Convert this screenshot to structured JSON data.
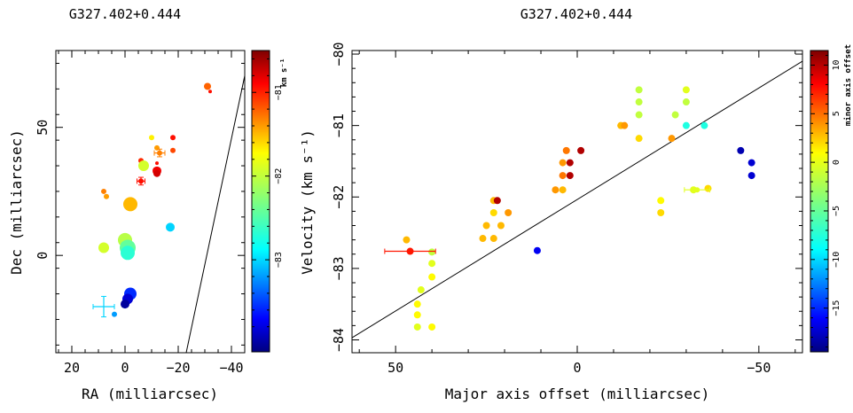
{
  "figure": {
    "left_title": "G327.402+0.444",
    "right_title": "G327.402+0.444"
  },
  "chart_data": [
    {
      "type": "scatter",
      "title": "G327.402+0.444",
      "xlabel": "RA (milliarcsec)",
      "ylabel": "Dec (milliarcsec)",
      "xlim": [
        26,
        -45
      ],
      "ylim": [
        -38,
        80
      ],
      "x_ticks": [
        20,
        0,
        -20,
        -40
      ],
      "y_ticks": [
        0,
        50
      ],
      "x_tick_labels": [
        "20",
        "0",
        "−20",
        "−40"
      ],
      "y_tick_labels": [
        "0",
        "50"
      ],
      "fit_line": [
        [
          -47,
          80
        ],
        [
          -23,
          -38
        ]
      ],
      "color_by": "velocity (km s^-1)",
      "colorbar": {
        "label": "km s⁻¹",
        "min": -84.1,
        "max": -80.5,
        "ticks": [
          -81,
          -82,
          -83
        ],
        "tick_labels": [
          "−81",
          "−82",
          "−83"
        ]
      },
      "points": [
        {
          "ra": -31,
          "dec": 66,
          "v": -81.3,
          "r": 4
        },
        {
          "ra": -32,
          "dec": 64,
          "v": -81.0,
          "r": 2
        },
        {
          "ra": -18,
          "dec": 46,
          "v": -81.0,
          "r": 3
        },
        {
          "ra": -10,
          "dec": 46,
          "v": -81.8,
          "r": 3
        },
        {
          "ra": -12,
          "dec": 42,
          "v": -81.5,
          "r": 3
        },
        {
          "ra": -18,
          "dec": 41,
          "v": -81.2,
          "r": 3
        },
        {
          "ra": -13,
          "dec": 40,
          "v": -81.4,
          "r": 3
        },
        {
          "ra": -6,
          "dec": 37,
          "v": -81.1,
          "r": 3
        },
        {
          "ra": -12,
          "dec": 36,
          "v": -81.0,
          "r": 2
        },
        {
          "ra": -7,
          "dec": 35,
          "v": -82.0,
          "r": 6
        },
        {
          "ra": -12,
          "dec": 33,
          "v": -80.9,
          "r": 5
        },
        {
          "ra": -12,
          "dec": 32,
          "v": -80.8,
          "r": 4
        },
        {
          "ra": -6,
          "dec": 29,
          "v": -81.0,
          "r": 3
        },
        {
          "ra": 8,
          "dec": 25,
          "v": -81.4,
          "r": 3
        },
        {
          "ra": 7,
          "dec": 23,
          "v": -81.5,
          "r": 3
        },
        {
          "ra": -2,
          "dec": 20,
          "v": -81.6,
          "r": 8
        },
        {
          "ra": -17,
          "dec": 11,
          "v": -82.9,
          "r": 5
        },
        {
          "ra": 0,
          "dec": 6,
          "v": -82.1,
          "r": 8
        },
        {
          "ra": 8,
          "dec": 3,
          "v": -82.0,
          "r": 6
        },
        {
          "ra": -1,
          "dec": 3,
          "v": -82.4,
          "r": 9
        },
        {
          "ra": -1,
          "dec": 1,
          "v": -82.6,
          "r": 8
        },
        {
          "ra": -2,
          "dec": -15,
          "v": -83.5,
          "r": 7
        },
        {
          "ra": -1,
          "dec": -17,
          "v": -83.8,
          "r": 6
        },
        {
          "ra": 0,
          "dec": -19,
          "v": -84.0,
          "r": 5
        },
        {
          "ra": 4,
          "dec": -23,
          "v": -83.1,
          "r": 3
        }
      ],
      "error_bars": [
        {
          "ra": -6,
          "dec": 29,
          "dx": 1.5,
          "dy": 1.5,
          "v": -81.0
        },
        {
          "ra": -13,
          "dec": 40,
          "dx": 2,
          "dy": 1.5,
          "v": -81.4
        },
        {
          "ra": 8,
          "dec": -20,
          "dx": 4,
          "dy": 4,
          "v": -82.9
        }
      ]
    },
    {
      "type": "scatter",
      "title": "G327.402+0.444",
      "xlabel": "Major axis offset (milliarcsec)",
      "ylabel": "Velocity (km s⁻¹)",
      "xlim": [
        62,
        -62
      ],
      "ylim": [
        -84.18,
        -79.95
      ],
      "x_ticks": [
        50,
        0,
        -50
      ],
      "y_ticks": [
        -80,
        -81,
        -82,
        -83,
        -84
      ],
      "x_tick_labels": [
        "50",
        "0",
        "−50"
      ],
      "y_tick_labels": [
        "−80",
        "−81",
        "−82",
        "−83",
        "−84"
      ],
      "fit_line": [
        [
          62,
          -83.97
        ],
        [
          -62,
          -80.1
        ]
      ],
      "color_by": "minor axis offset",
      "colorbar": {
        "label": "minor axis offset",
        "min": -19.5,
        "max": 11.5,
        "ticks": [
          10,
          5,
          0,
          -5,
          -10,
          -15
        ],
        "tick_labels": [
          "10",
          "5",
          "0",
          "−5",
          "−10",
          "−15"
        ]
      },
      "points": [
        {
          "x": 47,
          "y": -82.6,
          "m": 2
        },
        {
          "x": 44,
          "y": -83.5,
          "m": 0
        },
        {
          "x": 44,
          "y": -83.65,
          "m": 0
        },
        {
          "x": 44,
          "y": -83.82,
          "m": -1
        },
        {
          "x": 43,
          "y": -83.3,
          "m": -1
        },
        {
          "x": 40,
          "y": -82.77,
          "m": -2
        },
        {
          "x": 40,
          "y": -82.93,
          "m": -1
        },
        {
          "x": 40,
          "y": -83.12,
          "m": 0
        },
        {
          "x": 40,
          "y": -83.82,
          "m": 0
        },
        {
          "x": 26,
          "y": -82.58,
          "m": 2
        },
        {
          "x": 25,
          "y": -82.4,
          "m": 2
        },
        {
          "x": 23,
          "y": -82.05,
          "m": 2
        },
        {
          "x": 23,
          "y": -82.22,
          "m": 1
        },
        {
          "x": 23,
          "y": -82.58,
          "m": 2
        },
        {
          "x": 22,
          "y": -82.05,
          "m": 10
        },
        {
          "x": 21,
          "y": -82.4,
          "m": 2
        },
        {
          "x": 19,
          "y": -82.22,
          "m": 3
        },
        {
          "x": 11,
          "y": -82.75,
          "m": -16
        },
        {
          "x": 6,
          "y": -81.9,
          "m": 3
        },
        {
          "x": 4,
          "y": -81.9,
          "m": 2
        },
        {
          "x": 4,
          "y": -81.7,
          "m": 4
        },
        {
          "x": 4,
          "y": -81.52,
          "m": 3
        },
        {
          "x": 3,
          "y": -81.35,
          "m": 4
        },
        {
          "x": 2,
          "y": -81.7,
          "m": 10
        },
        {
          "x": 2,
          "y": -81.52,
          "m": 10
        },
        {
          "x": -1,
          "y": -81.35,
          "m": 10
        },
        {
          "x": -12,
          "y": -81.0,
          "m": 2
        },
        {
          "x": -13,
          "y": -81.0,
          "m": 3
        },
        {
          "x": -17,
          "y": -80.5,
          "m": -2
        },
        {
          "x": -17,
          "y": -80.67,
          "m": -2
        },
        {
          "x": -17,
          "y": -80.85,
          "m": -2
        },
        {
          "x": -17,
          "y": -81.18,
          "m": 1
        },
        {
          "x": -23,
          "y": -82.05,
          "m": 0
        },
        {
          "x": -23,
          "y": -82.22,
          "m": 1
        },
        {
          "x": -26,
          "y": -81.18,
          "m": 3
        },
        {
          "x": -30,
          "y": -80.5,
          "m": -1
        },
        {
          "x": -30,
          "y": -80.67,
          "m": -2
        },
        {
          "x": -30,
          "y": -81.0,
          "m": -7
        },
        {
          "x": -27,
          "y": -80.85,
          "m": -2
        },
        {
          "x": -32,
          "y": -81.9,
          "m": -1
        },
        {
          "x": -35,
          "y": -81.0,
          "m": -7
        },
        {
          "x": -36,
          "y": -81.88,
          "m": 1
        },
        {
          "x": -45,
          "y": -81.35,
          "m": -18
        },
        {
          "x": -48,
          "y": -81.52,
          "m": -17
        },
        {
          "x": -48,
          "y": -81.7,
          "m": -17
        }
      ],
      "error_bars": [
        {
          "x": 46,
          "y": -82.76,
          "dx": 7,
          "m": 7,
          "big": true
        },
        {
          "x": -33,
          "y": -81.9,
          "dx": 3.5,
          "m": -1
        }
      ]
    }
  ]
}
